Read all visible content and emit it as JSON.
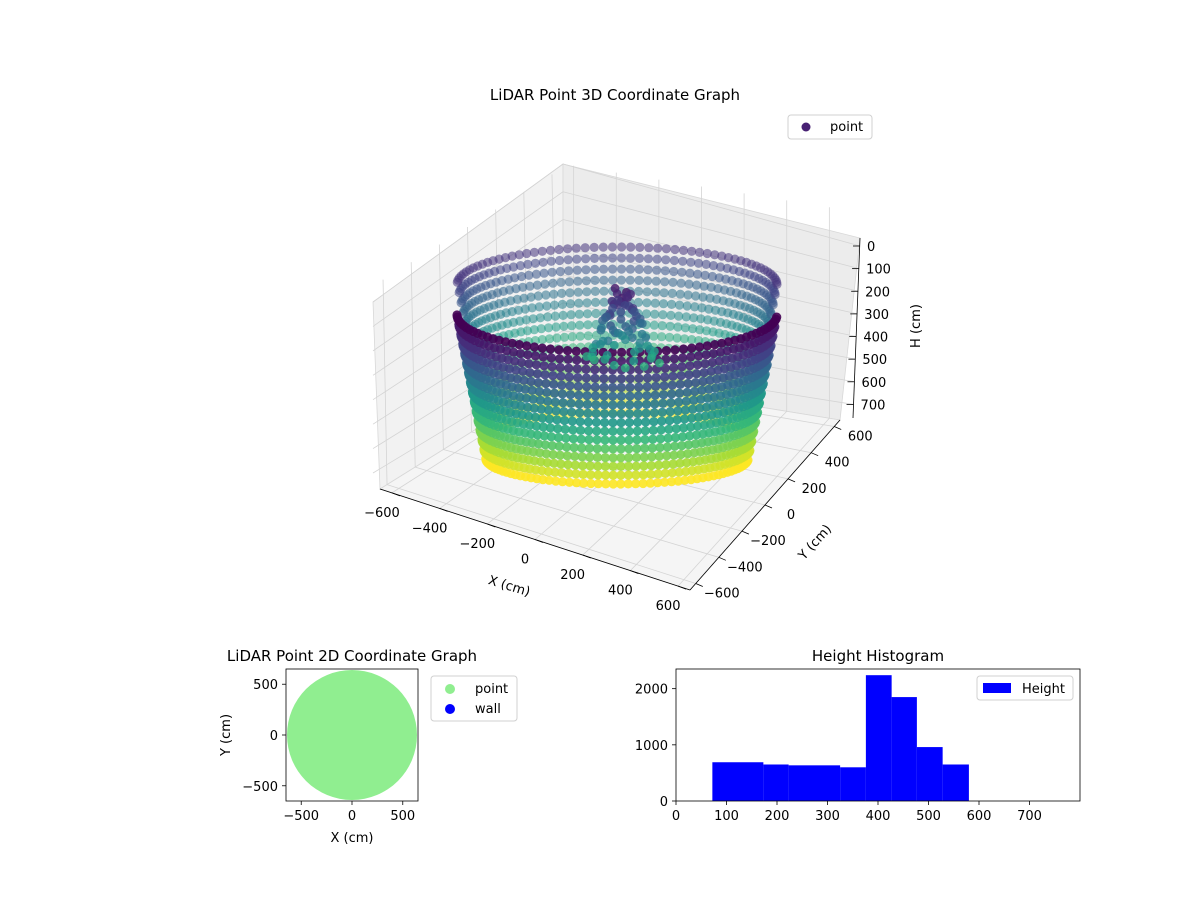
{
  "chart_data": [
    {
      "type": "scatter",
      "title": "LiDAR Point 3D Coordinate Graph",
      "xlabel": "X (cm)",
      "ylabel": "Y (cm)",
      "zlabel": "H (cm)",
      "xticks": [
        "−600",
        "−400",
        "−200",
        "0",
        "200",
        "400",
        "600"
      ],
      "yticks": [
        "−600",
        "−400",
        "−200",
        "0",
        "200",
        "400",
        "600"
      ],
      "zticks": [
        "0",
        "100",
        "200",
        "300",
        "400",
        "500",
        "600",
        "700"
      ],
      "xlim": [
        -650,
        650
      ],
      "ylim": [
        -650,
        650
      ],
      "zlim": [
        0,
        760
      ],
      "z_axis_inverted": true,
      "colormap": "viridis (by height)",
      "legend": {
        "entries": [
          "point"
        ],
        "placement": "upper right"
      },
      "series": [
        {
          "name": "point",
          "shape": "cylindrical wall",
          "radius": 600,
          "height_range": [
            0,
            760
          ],
          "center_cluster": {
            "x": 0,
            "y": 0,
            "height_range": [
              170,
              480
            ]
          },
          "color": "#482173"
        }
      ]
    },
    {
      "type": "scatter",
      "title": "LiDAR Point 2D Coordinate Graph",
      "xlabel": "X (cm)",
      "ylabel": "Y (cm)",
      "xticks": [
        "−500",
        "0",
        "500"
      ],
      "yticks": [
        "500",
        "0",
        "−500"
      ],
      "xlim": [
        -650,
        650
      ],
      "ylim": [
        -650,
        650
      ],
      "legend": {
        "entries": [
          "point",
          "wall"
        ],
        "placement": "outside right"
      },
      "series": [
        {
          "name": "point",
          "color": "#90ee90",
          "shape": "filled disk",
          "radius": 640
        },
        {
          "name": "wall",
          "color": "#0000ff"
        }
      ]
    },
    {
      "type": "bar",
      "title": "Height Histogram",
      "xlabel": "",
      "ylabel": "",
      "xticks": [
        "0",
        "100",
        "200",
        "300",
        "400",
        "500",
        "600",
        "700"
      ],
      "yticks": [
        "0",
        "1000",
        "2000"
      ],
      "xlim": [
        0,
        800
      ],
      "ylim": [
        0,
        2350
      ],
      "legend": {
        "entries": [
          "Height"
        ],
        "placement": "upper right"
      },
      "series": [
        {
          "name": "Height",
          "color": "#0000ff",
          "bins": [
            {
              "x0": 72,
              "x1": 173,
              "count": 690
            },
            {
              "x0": 173,
              "x1": 223,
              "count": 650
            },
            {
              "x0": 223,
              "x1": 325,
              "count": 635
            },
            {
              "x0": 325,
              "x1": 376,
              "count": 600
            },
            {
              "x0": 376,
              "x1": 427,
              "count": 2240
            },
            {
              "x0": 427,
              "x1": 477,
              "count": 1850
            },
            {
              "x0": 477,
              "x1": 528,
              "count": 960
            },
            {
              "x0": 528,
              "x1": 580,
              "count": 650
            }
          ]
        }
      ]
    }
  ]
}
